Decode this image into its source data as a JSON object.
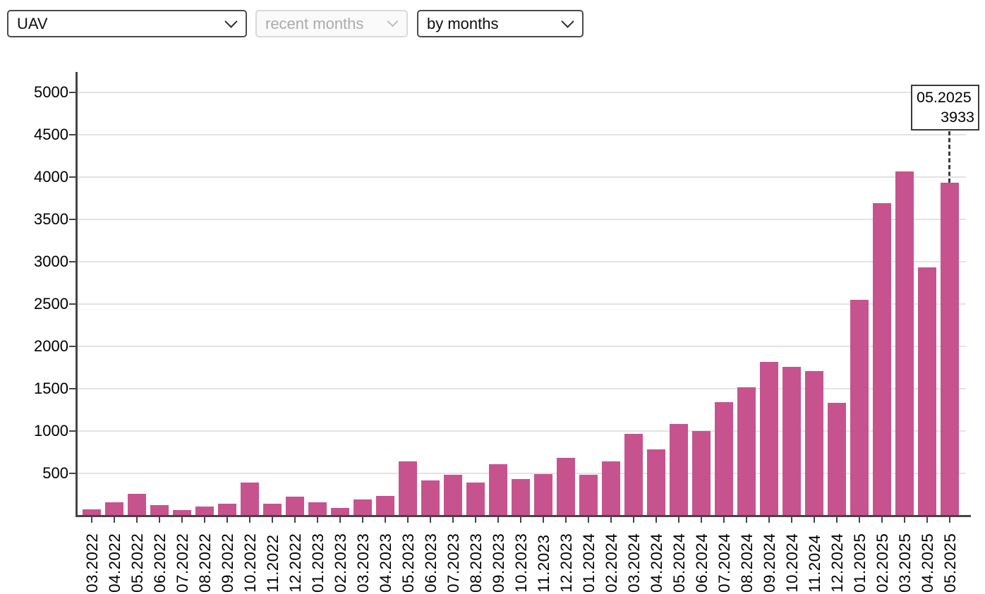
{
  "controls": {
    "category_select": {
      "value": "UAV"
    },
    "recent_months_select": {
      "value": "recent months",
      "disabled": true
    },
    "grouping_select": {
      "value": "by months"
    }
  },
  "tooltip": {
    "label": "05.2025",
    "value": "3933"
  },
  "colors": {
    "bar": "#c7538e",
    "axis": "#454545",
    "grid": "#e3e3e3",
    "tooltip_border": "#3a3a3a",
    "disabled_text": "#ababab"
  },
  "chart_data": {
    "type": "bar",
    "title": "",
    "xlabel": "",
    "ylabel": "",
    "categories": [
      "03.2022",
      "04.2022",
      "05.2022",
      "06.2022",
      "07.2022",
      "08.2022",
      "09.2022",
      "10.2022",
      "11.2022",
      "12.2022",
      "01.2023",
      "02.2023",
      "03.2023",
      "04.2023",
      "05.2023",
      "06.2023",
      "07.2023",
      "08.2023",
      "09.2023",
      "10.2023",
      "11.2023",
      "12.2023",
      "01.2024",
      "02.2024",
      "03.2024",
      "04.2024",
      "05.2024",
      "06.2024",
      "07.2024",
      "08.2024",
      "09.2024",
      "10.2024",
      "11.2024",
      "12.2024",
      "01.2025",
      "02.2025",
      "03.2025",
      "04.2025",
      "05.2025"
    ],
    "values": [
      75,
      160,
      260,
      125,
      65,
      110,
      140,
      390,
      140,
      225,
      160,
      95,
      195,
      230,
      645,
      415,
      480,
      395,
      605,
      430,
      495,
      680,
      480,
      645,
      965,
      780,
      1080,
      1000,
      1345,
      1520,
      1815,
      1760,
      1710,
      1330,
      2550,
      3695,
      4065,
      2930,
      3933
    ],
    "yticks": [
      500,
      1000,
      1500,
      2000,
      2500,
      3000,
      3500,
      4000,
      4500,
      5000
    ],
    "ylim": [
      0,
      5250
    ],
    "grid": "horizontal",
    "legend": "none",
    "bar_color": "#c7538e",
    "highlighted_category": "05.2025",
    "highlighted_value": 3933
  }
}
